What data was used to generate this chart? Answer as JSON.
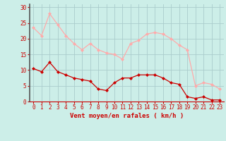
{
  "hours": [
    0,
    1,
    2,
    3,
    4,
    5,
    6,
    7,
    8,
    9,
    10,
    11,
    12,
    13,
    14,
    15,
    16,
    17,
    18,
    19,
    20,
    21,
    22,
    23
  ],
  "wind_avg": [
    10.5,
    9.5,
    12.5,
    9.5,
    8.5,
    7.5,
    7.0,
    6.5,
    4.0,
    3.5,
    6.0,
    7.5,
    7.5,
    8.5,
    8.5,
    8.5,
    7.5,
    6.0,
    5.5,
    1.5,
    1.0,
    1.5,
    0.5,
    0.5
  ],
  "wind_gust": [
    23.5,
    21.0,
    28.0,
    24.5,
    21.0,
    18.5,
    16.5,
    18.5,
    16.5,
    15.5,
    15.0,
    13.5,
    18.5,
    19.5,
    21.5,
    22.0,
    21.5,
    20.0,
    18.0,
    16.5,
    5.0,
    6.0,
    5.5,
    4.0
  ],
  "avg_color": "#cc0000",
  "gust_color": "#ffaaaa",
  "bg_color": "#cceee8",
  "grid_color": "#aacccc",
  "ylabel_values": [
    0,
    5,
    10,
    15,
    20,
    25,
    30
  ],
  "ylim": [
    0,
    31
  ],
  "xlabel": "Vent moyen/en rafales ( km/h )",
  "marker": "D",
  "marker_size": 2,
  "line_width": 0.9,
  "tick_labelsize": 5.5,
  "xlabel_fontsize": 6.5
}
